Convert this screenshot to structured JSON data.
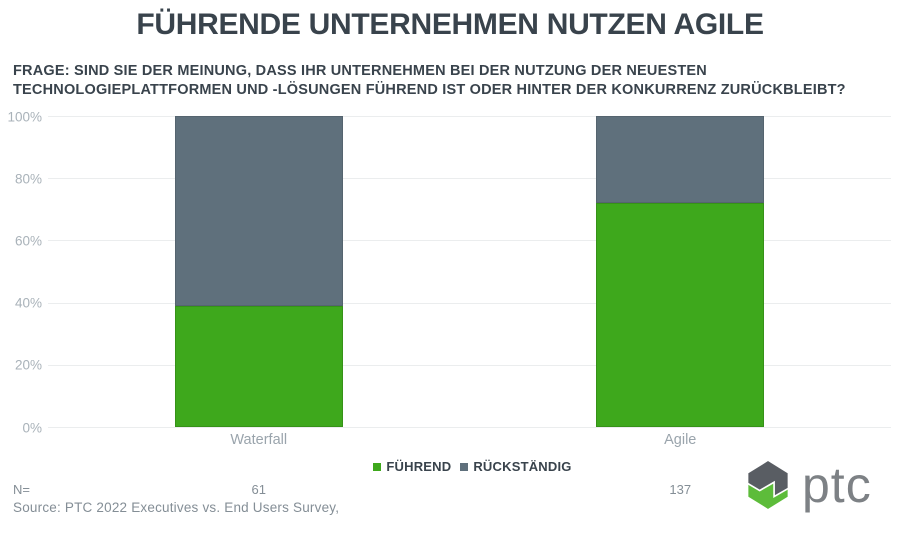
{
  "chart_data": {
    "type": "bar",
    "stacked": true,
    "title": "FÜHRENDE UNTERNEHMEN NUTZEN AGILE",
    "subtitle_lines": [
      "FRAGE: SIND SIE DER MEINUNG, DASS IHR UNTERNEHMEN BEI DER NUTZUNG DER NEUESTEN",
      "TECHNOLOGIEPLATTFORMEN UND -LÖSUNGEN FÜHREND IST ODER HINTER DER KONKURRENZ ZURÜCKBLEIBT?"
    ],
    "categories": [
      "Waterfall",
      "Agile"
    ],
    "series": [
      {
        "name": "FÜHREND",
        "color": "#3ea81c",
        "values": [
          39,
          72
        ]
      },
      {
        "name": "RÜCKSTÄNDIG",
        "color": "#5f707c",
        "values": [
          61,
          28
        ]
      }
    ],
    "ylim": [
      0,
      100
    ],
    "ytick_labels": [
      "0%",
      "20%",
      "40%",
      "60%",
      "80%",
      "100%"
    ],
    "grid": true,
    "legend_position": "bottom",
    "n_label": "N=",
    "n_values": [
      "61",
      "137"
    ]
  },
  "footer": {
    "source": "Source: PTC 2022 Executives vs. End Users Survey,",
    "logo_text": "ptc"
  },
  "colors": {
    "leading_green": "#3ea81c",
    "lagging_slate": "#5f707c",
    "logo_gray": "#595d63",
    "logo_green": "#5dbc3a"
  }
}
